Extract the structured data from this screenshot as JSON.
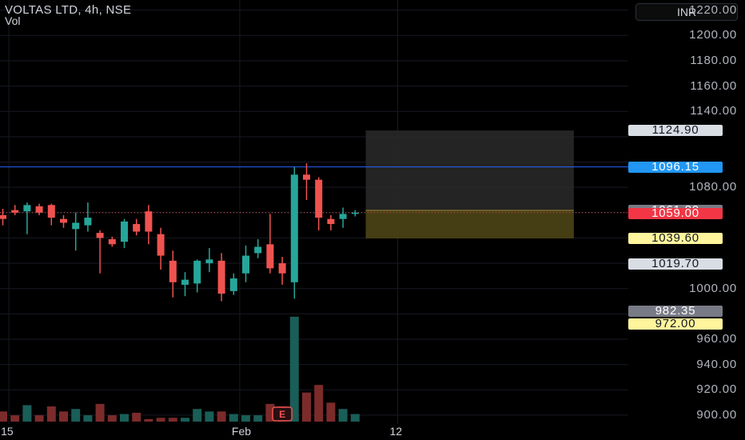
{
  "header": {
    "symbol_line": "VOLTAS LTD, 4h, NSE",
    "indicator": "Vol"
  },
  "currency_button": "INR",
  "colors": {
    "up": "#26a69a",
    "down": "#ef5350",
    "vol_up": "#1a5e58",
    "vol_down": "#7c2b2b",
    "grid": "#161a23",
    "hline": "#2962ff"
  },
  "chart_data": {
    "type": "candlestick",
    "title": "VOLTAS LTD, 4h, NSE",
    "y_axis": {
      "range": [
        893,
        1228
      ],
      "ticks": [
        "900.00",
        "920.00",
        "940.00",
        "960.00",
        "1000.00",
        "1080.00",
        "1140.00",
        "1160.00",
        "1180.00",
        "1200.00",
        "1220.00"
      ]
    },
    "x_axis": {
      "labels": [
        {
          "text": "15",
          "bar": 0.5
        },
        {
          "text": "Feb",
          "bar": 19.5
        },
        {
          "text": "12",
          "bar": 32.5
        }
      ]
    },
    "candles": [
      {
        "o": 1058,
        "h": 1063,
        "l": 1050,
        "c": 1055
      },
      {
        "o": 1062,
        "h": 1066,
        "l": 1058,
        "c": 1060
      },
      {
        "o": 1061,
        "h": 1068,
        "l": 1043,
        "c": 1066
      },
      {
        "o": 1065,
        "h": 1067,
        "l": 1058,
        "c": 1060
      },
      {
        "o": 1066,
        "h": 1067,
        "l": 1050,
        "c": 1056
      },
      {
        "o": 1055,
        "h": 1058,
        "l": 1048,
        "c": 1052
      },
      {
        "o": 1047,
        "h": 1060,
        "l": 1030,
        "c": 1052
      },
      {
        "o": 1050,
        "h": 1068,
        "l": 1045,
        "c": 1056
      },
      {
        "o": 1044,
        "h": 1046,
        "l": 1012,
        "c": 1040
      },
      {
        "o": 1039,
        "h": 1041,
        "l": 1033,
        "c": 1035
      },
      {
        "o": 1037,
        "h": 1055,
        "l": 1032,
        "c": 1053
      },
      {
        "o": 1051,
        "h": 1055,
        "l": 1042,
        "c": 1045
      },
      {
        "o": 1061,
        "h": 1066,
        "l": 1035,
        "c": 1045
      },
      {
        "o": 1043,
        "h": 1048,
        "l": 1015,
        "c": 1026
      },
      {
        "o": 1022,
        "h": 1030,
        "l": 993,
        "c": 1005
      },
      {
        "o": 1003,
        "h": 1013,
        "l": 994,
        "c": 1007
      },
      {
        "o": 1004,
        "h": 1023,
        "l": 997,
        "c": 1022
      },
      {
        "o": 1020,
        "h": 1032,
        "l": 1013,
        "c": 1023
      },
      {
        "o": 1022,
        "h": 1028,
        "l": 990,
        "c": 996
      },
      {
        "o": 998,
        "h": 1012,
        "l": 995,
        "c": 1008
      },
      {
        "o": 1012,
        "h": 1034,
        "l": 1005,
        "c": 1026
      },
      {
        "o": 1028,
        "h": 1039,
        "l": 1024,
        "c": 1033
      },
      {
        "o": 1035,
        "h": 1059,
        "l": 1012,
        "c": 1016
      },
      {
        "o": 1020,
        "h": 1025,
        "l": 1003,
        "c": 1012
      },
      {
        "o": 1005,
        "h": 1096,
        "l": 992,
        "c": 1090
      },
      {
        "o": 1090,
        "h": 1099,
        "l": 1070,
        "c": 1086
      },
      {
        "o": 1086,
        "h": 1088,
        "l": 1046,
        "c": 1056
      },
      {
        "o": 1055,
        "h": 1058,
        "l": 1046,
        "c": 1051
      },
      {
        "o": 1055,
        "h": 1064,
        "l": 1048,
        "c": 1059
      },
      {
        "o": 1059,
        "h": 1062,
        "l": 1057,
        "c": 1060
      }
    ],
    "volume": [
      8,
      5,
      13,
      5,
      12,
      8,
      10,
      5,
      14,
      5,
      6,
      7,
      2,
      3,
      3,
      3,
      10,
      8,
      8,
      6,
      5,
      5,
      14,
      12,
      83,
      23,
      29,
      15,
      10,
      6
    ],
    "earnings_marker": {
      "bar": 23,
      "label": "E"
    },
    "horizontal_line": 1096.15,
    "position_box": {
      "bar_start": 30,
      "bar_end": 47,
      "top": 1124.9,
      "entry": 1061.8,
      "bottom": 1039.6
    },
    "price_badges": [
      {
        "text": "1124.90",
        "value": 1124.9,
        "bg": "#d9dde4",
        "fg": "#131722"
      },
      {
        "text": "1096.15",
        "value": 1096.15,
        "bg": "#2196f3",
        "fg": "#ffffff"
      },
      {
        "text": "1061.80",
        "value": 1061.8,
        "bg": "#787b86",
        "fg": "#ffffff"
      },
      {
        "text": "1059.00",
        "value": 1059.0,
        "bg": "#f23645",
        "fg": "#ffffff"
      },
      {
        "text": "1039.60",
        "value": 1039.6,
        "bg": "#fff59d",
        "fg": "#131722"
      },
      {
        "text": "1019.70",
        "value": 1019.7,
        "bg": "#d9dde4",
        "fg": "#131722"
      },
      {
        "text": "982.35",
        "value": 982.35,
        "bg": "#787b86",
        "fg": "#ffffff"
      },
      {
        "text": "972.00",
        "value": 972.0,
        "bg": "#fff59d",
        "fg": "#131722"
      }
    ]
  }
}
